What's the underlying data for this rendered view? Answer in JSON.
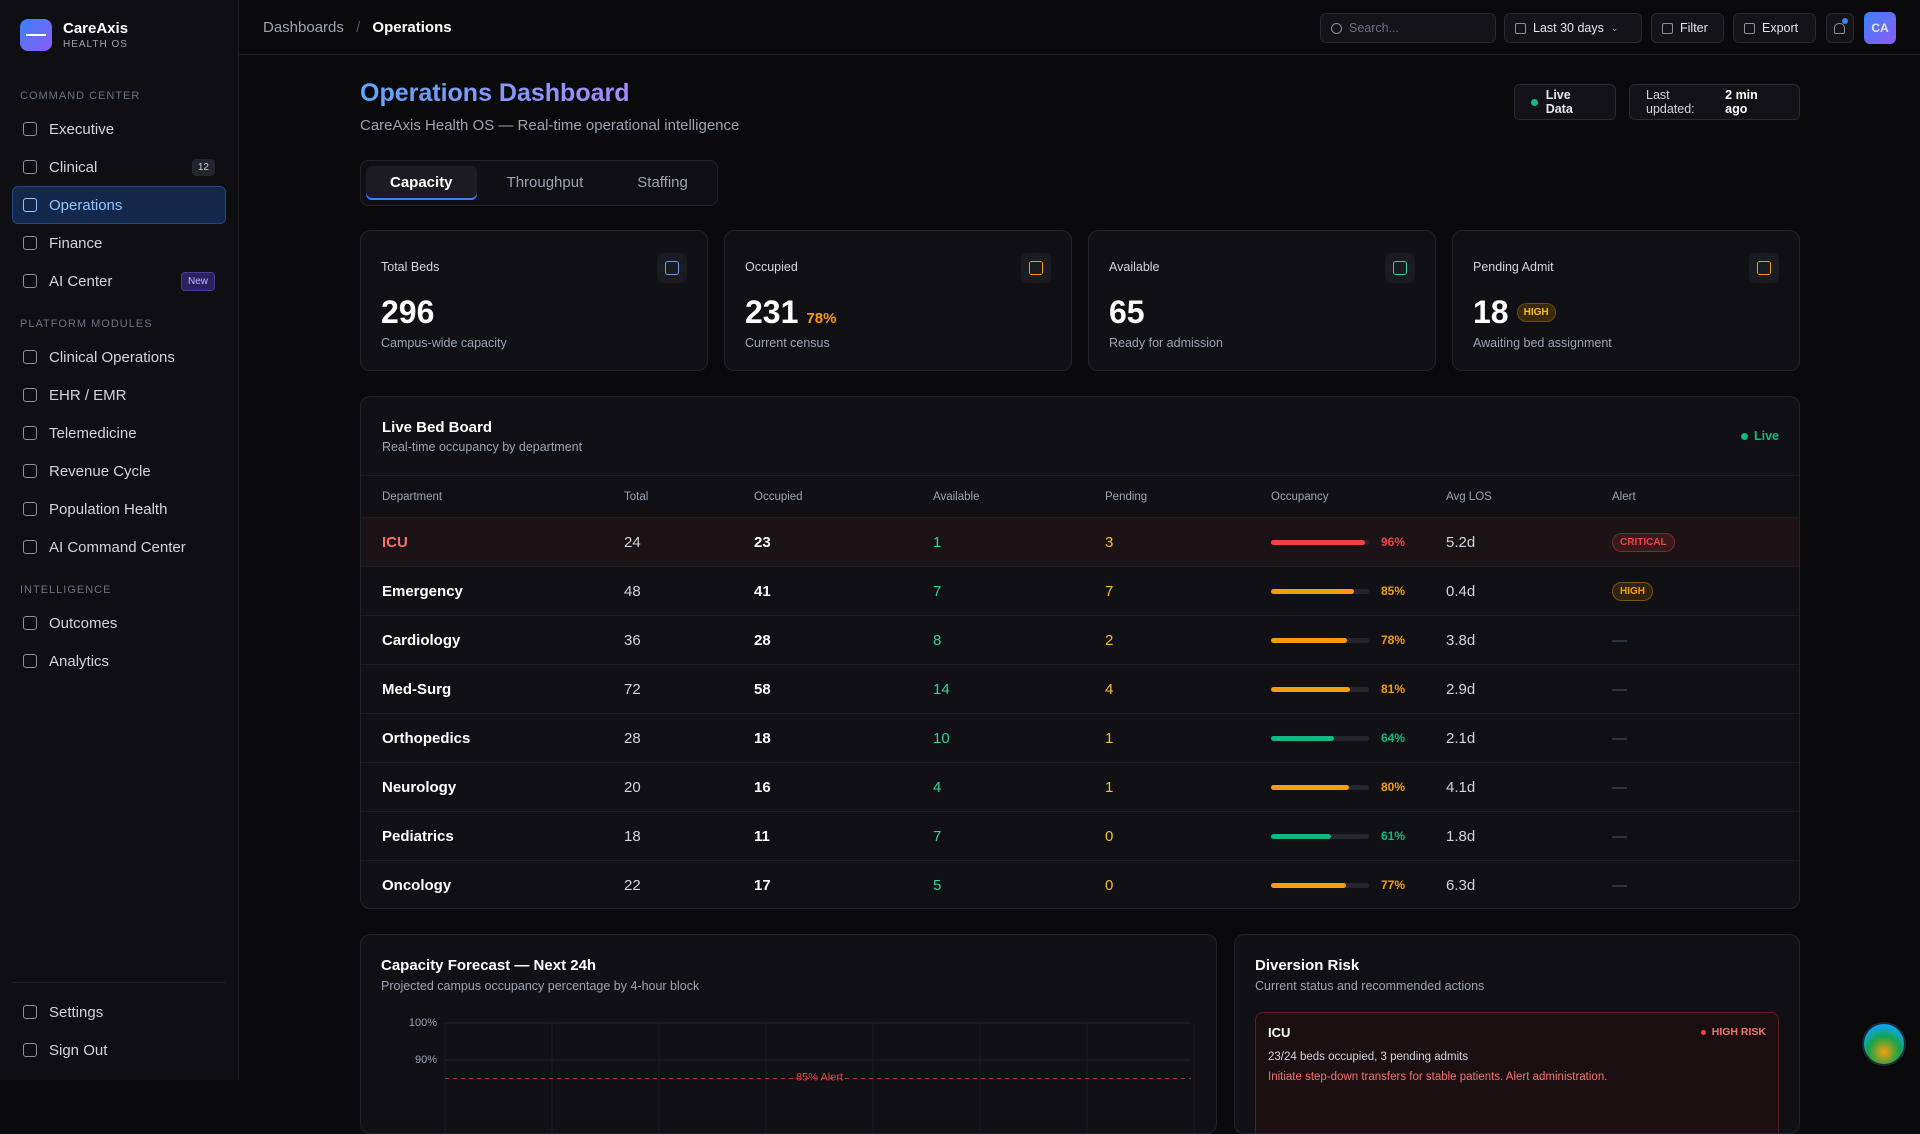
{
  "sidebar": {
    "brand": {
      "name": "CareAxis",
      "sub": "HEALTH OS"
    },
    "sections": [
      {
        "title": "COMMAND CENTER",
        "items": [
          {
            "label": "Executive"
          },
          {
            "label": "Clinical",
            "badge": "12"
          },
          {
            "label": "Operations",
            "active": true
          },
          {
            "label": "Finance"
          },
          {
            "label": "AI Center",
            "badge": "New"
          }
        ]
      },
      {
        "title": "PLATFORM MODULES",
        "items": [
          {
            "label": "Clinical Operations"
          },
          {
            "label": "EHR / EMR"
          },
          {
            "label": "Telemedicine"
          },
          {
            "label": "Revenue Cycle"
          },
          {
            "label": "Population Health"
          },
          {
            "label": "AI Command Center"
          }
        ]
      },
      {
        "title": "INTELLIGENCE",
        "items": [
          {
            "label": "Outcomes"
          },
          {
            "label": "Analytics"
          }
        ]
      }
    ],
    "footer": [
      {
        "label": "Settings"
      },
      {
        "label": "Sign Out"
      }
    ]
  },
  "topbar": {
    "breadcrumb": [
      "Dashboards",
      "Operations"
    ],
    "search": "Search...",
    "range": "Last 30 days",
    "filter": "Filter",
    "export": "Export",
    "avatar": "CA"
  },
  "header": {
    "title": "Operations Dashboard",
    "subtitle": "CareAxis Health OS — Real-time operational intelligence",
    "live": "Live Data",
    "updated_label": "Last updated:",
    "updated_value": "2 min ago"
  },
  "tabs": [
    "Capacity",
    "Throughput",
    "Staffing"
  ],
  "stats": [
    {
      "label": "Total Beds",
      "value": 296,
      "note": "Campus-wide capacity",
      "icon_color": "#60a5fa"
    },
    {
      "label": "Occupied",
      "value": 231,
      "extra": "78%",
      "extra_color": "#f59e0b",
      "note": "Current census",
      "icon_color": "#f59e0b"
    },
    {
      "label": "Available",
      "value": 65,
      "note": "Ready for admission",
      "icon_color": "#34d399"
    },
    {
      "label": "Pending Admit",
      "value": 18,
      "badge": "HIGH",
      "note": "Awaiting bed assignment",
      "icon_color": "#f59e0b"
    }
  ],
  "bed_board": {
    "title": "Live Bed Board",
    "subtitle": "Real-time occupancy by department",
    "live": "Live",
    "columns": [
      "Department",
      "Total",
      "Occupied",
      "Available",
      "Pending",
      "Occupancy",
      "Avg LOS",
      "Alert"
    ],
    "rows": [
      {
        "department": "ICU",
        "total": 24,
        "occupied": 23,
        "available": 1,
        "pending": 3,
        "occupancy": 96,
        "occupancy_label": "96%",
        "avg_los": "5.2d",
        "alert": "CRITICAL",
        "alert_color": "#ef4444",
        "bar_color": "#ef4444",
        "color": "#f87171"
      },
      {
        "department": "Emergency",
        "total": 48,
        "occupied": 41,
        "available": 7,
        "pending": 7,
        "occupancy": 85,
        "occupancy_label": "85%",
        "avg_los": "0.4d",
        "alert": "HIGH",
        "alert_color": "#f59e0b",
        "bar_color": "#f59e0b"
      },
      {
        "department": "Cardiology",
        "total": 36,
        "occupied": 28,
        "available": 8,
        "pending": 2,
        "occupancy": 78,
        "occupancy_label": "78%",
        "avg_los": "3.8d",
        "alert": "—",
        "bar_color": "#f59e0b"
      },
      {
        "department": "Med-Surg",
        "total": 72,
        "occupied": 58,
        "available": 14,
        "pending": 4,
        "occupancy": 81,
        "occupancy_label": "81%",
        "avg_los": "2.9d",
        "alert": "—",
        "bar_color": "#f59e0b"
      },
      {
        "department": "Orthopedics",
        "total": 28,
        "occupied": 18,
        "available": 10,
        "pending": 1,
        "occupancy": 64,
        "occupancy_label": "64%",
        "avg_los": "2.1d",
        "alert": "—",
        "bar_color": "#10b981"
      },
      {
        "department": "Neurology",
        "total": 20,
        "occupied": 16,
        "available": 4,
        "pending": 1,
        "occupancy": 80,
        "occupancy_label": "80%",
        "avg_los": "4.1d",
        "alert": "—",
        "bar_color": "#f59e0b"
      },
      {
        "department": "Pediatrics",
        "total": 18,
        "occupied": 11,
        "available": 7,
        "pending": 0,
        "occupancy": 61,
        "occupancy_label": "61%",
        "avg_los": "1.8d",
        "alert": "—",
        "bar_color": "#10b981"
      },
      {
        "department": "Oncology",
        "total": 22,
        "occupied": 17,
        "available": 5,
        "pending": 0,
        "occupancy": 77,
        "occupancy_label": "77%",
        "avg_los": "6.3d",
        "alert": "—",
        "bar_color": "#f59e0b"
      }
    ]
  },
  "forecast": {
    "title": "Capacity Forecast — Next 24h",
    "subtitle": "Projected campus occupancy percentage by 4-hour block",
    "ylim": [
      80,
      100
    ],
    "yticks": [
      {
        "value": 100,
        "label": "100%"
      },
      {
        "value": 90,
        "label": "90%"
      }
    ],
    "threshold": {
      "value": 85,
      "label": "85% Alert",
      "color": "#ef4444"
    }
  },
  "diversion": {
    "title": "Diversion Risk",
    "subtitle": "Current status and recommended actions",
    "items": [
      {
        "department": "ICU",
        "risk": "HIGH RISK",
        "detail": "23/24 beds occupied, 3 pending admits",
        "action": "Initiate step-down transfers for stable patients. Alert administration."
      }
    ]
  }
}
